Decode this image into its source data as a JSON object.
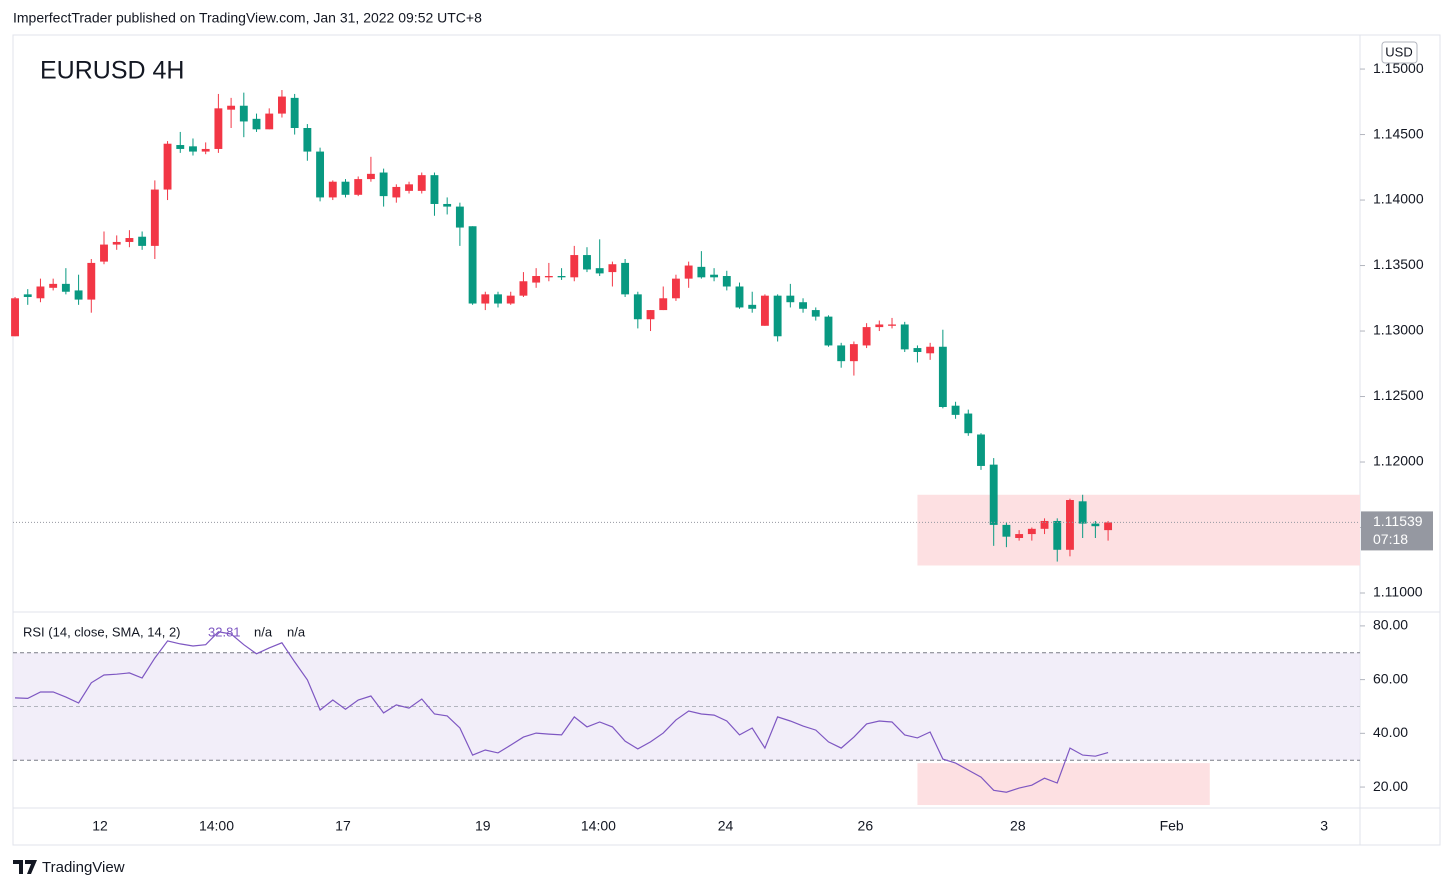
{
  "header": {
    "byline": "ImperfectTrader published on TradingView.com, Jan 31, 2022 09:52 UTC+8"
  },
  "footer": {
    "brand": "TradingView"
  },
  "chart_data": [
    {
      "type": "candlestick",
      "title": "EURUSD 4H",
      "currency": "USD",
      "up_color": "#f23645",
      "down_color": "#089981",
      "ylim": [
        1.10855,
        1.1526
      ],
      "yticks": [
        {
          "value": 1.11,
          "label": "1.11000"
        },
        {
          "value": 1.115,
          "label": "1.11500"
        },
        {
          "value": 1.12,
          "label": "1.12000"
        },
        {
          "value": 1.125,
          "label": "1.12500"
        },
        {
          "value": 1.13,
          "label": "1.13000"
        },
        {
          "value": 1.135,
          "label": "1.13500"
        },
        {
          "value": 1.14,
          "label": "1.14000"
        },
        {
          "value": 1.145,
          "label": "1.14500"
        },
        {
          "value": 1.15,
          "label": "1.15000"
        }
      ],
      "open": [
        1.1296,
        1.1328,
        1.1325,
        1.1333,
        1.1336,
        1.1331,
        1.1324,
        1.1353,
        1.1366,
        1.1368,
        1.1372,
        1.1365,
        1.1408,
        1.1442,
        1.1441,
        1.1437,
        1.1439,
        1.1469,
        1.1472,
        1.1462,
        1.1454,
        1.1466,
        1.1478,
        1.1455,
        1.1437,
        1.1402,
        1.1414,
        1.1404,
        1.1416,
        1.1421,
        1.1402,
        1.1407,
        1.1407,
        1.1419,
        1.1397,
        1.1395,
        1.138,
        1.1321,
        1.1328,
        1.1321,
        1.1327,
        1.1337,
        1.1341,
        1.1342,
        1.1341,
        1.1358,
        1.1348,
        1.1345,
        1.1352,
        1.1328,
        1.1309,
        1.1316,
        1.1325,
        1.134,
        1.1349,
        1.1343,
        1.1342,
        1.1334,
        1.132,
        1.1304,
        1.1327,
        1.1327,
        1.1322,
        1.1316,
        1.1311,
        1.1289,
        1.1277,
        1.1289,
        1.1303,
        1.1304,
        1.1305,
        1.1287,
        1.1283,
        1.1288,
        1.1243,
        1.1237,
        1.1221,
        1.1198,
        1.1152,
        1.1142,
        1.1145,
        1.1149,
        1.1155,
        1.1133,
        1.117,
        1.1153,
        1.1148
      ],
      "high": [
        1.1326,
        1.1332,
        1.134,
        1.134,
        1.1348,
        1.1343,
        1.1355,
        1.1376,
        1.1373,
        1.1377,
        1.1376,
        1.1415,
        1.1445,
        1.1452,
        1.1447,
        1.1444,
        1.1481,
        1.1478,
        1.1482,
        1.1466,
        1.147,
        1.1484,
        1.1481,
        1.1458,
        1.144,
        1.1415,
        1.1416,
        1.1418,
        1.1433,
        1.1424,
        1.1412,
        1.1414,
        1.1421,
        1.1421,
        1.1402,
        1.1398,
        1.138,
        1.133,
        1.133,
        1.133,
        1.1345,
        1.1348,
        1.1352,
        1.1348,
        1.1365,
        1.1364,
        1.137,
        1.1353,
        1.1355,
        1.133,
        1.1316,
        1.1334,
        1.1343,
        1.1353,
        1.1361,
        1.1348,
        1.1346,
        1.1337,
        1.133,
        1.1328,
        1.1328,
        1.1336,
        1.1325,
        1.1318,
        1.1312,
        1.1291,
        1.1292,
        1.1306,
        1.1308,
        1.131,
        1.1307,
        1.1289,
        1.1291,
        1.1301,
        1.1246,
        1.124,
        1.1222,
        1.1203,
        1.1154,
        1.1148,
        1.115,
        1.1157,
        1.1157,
        1.1172,
        1.1175,
        1.1155,
        1.1155
      ],
      "low": [
        1.1296,
        1.132,
        1.1322,
        1.1331,
        1.1328,
        1.132,
        1.1314,
        1.1351,
        1.1362,
        1.1364,
        1.1362,
        1.1355,
        1.14,
        1.1436,
        1.1434,
        1.1435,
        1.1436,
        1.1455,
        1.1448,
        1.1452,
        1.1454,
        1.1463,
        1.145,
        1.143,
        1.1399,
        1.14,
        1.1402,
        1.1403,
        1.1414,
        1.1395,
        1.1398,
        1.1405,
        1.1405,
        1.1388,
        1.1389,
        1.1365,
        1.132,
        1.1316,
        1.1318,
        1.132,
        1.1326,
        1.1333,
        1.1338,
        1.1339,
        1.1338,
        1.1345,
        1.1342,
        1.1334,
        1.1326,
        1.1302,
        1.13,
        1.1316,
        1.1323,
        1.1333,
        1.134,
        1.1338,
        1.1331,
        1.1317,
        1.1314,
        1.1304,
        1.1292,
        1.1318,
        1.1314,
        1.1308,
        1.1288,
        1.1272,
        1.1266,
        1.1287,
        1.13,
        1.1302,
        1.1284,
        1.1276,
        1.1278,
        1.1241,
        1.1233,
        1.122,
        1.1194,
        1.1136,
        1.1135,
        1.114,
        1.114,
        1.1145,
        1.1124,
        1.1128,
        1.1142,
        1.1142,
        1.114
      ],
      "close": [
        1.1325,
        1.1326,
        1.1334,
        1.1336,
        1.133,
        1.1324,
        1.1352,
        1.1366,
        1.1368,
        1.1371,
        1.1365,
        1.1408,
        1.1443,
        1.1439,
        1.1437,
        1.1439,
        1.147,
        1.1472,
        1.146,
        1.1454,
        1.1466,
        1.1479,
        1.1455,
        1.1437,
        1.1402,
        1.1414,
        1.1404,
        1.1416,
        1.142,
        1.1403,
        1.141,
        1.1412,
        1.1419,
        1.1397,
        1.1395,
        1.1379,
        1.1321,
        1.1328,
        1.1321,
        1.1327,
        1.1338,
        1.1342,
        1.1342,
        1.1341,
        1.1358,
        1.1347,
        1.1344,
        1.1351,
        1.1328,
        1.1309,
        1.1316,
        1.1325,
        1.134,
        1.135,
        1.1341,
        1.1341,
        1.1334,
        1.1318,
        1.1317,
        1.1327,
        1.1296,
        1.1322,
        1.1317,
        1.1311,
        1.1289,
        1.1277,
        1.129,
        1.1303,
        1.1305,
        1.1305,
        1.1286,
        1.1284,
        1.1288,
        1.1242,
        1.1236,
        1.1222,
        1.1197,
        1.1152,
        1.1143,
        1.1145,
        1.1149,
        1.1155,
        1.1133,
        1.1171,
        1.1153,
        1.1151,
        1.11539
      ],
      "last_price_label": "1.11539",
      "countdown": "07:18",
      "zone": {
        "x_start": 71.0,
        "y": [
          1.1121,
          1.1175
        ],
        "color": "#fde0e2"
      }
    },
    {
      "type": "line",
      "title": "RSI (14, close, SMA, 14, 2)",
      "color": "#7e57c2",
      "status_labels": [
        "n/a",
        "n/a"
      ],
      "ylim": [
        12.2,
        84.8
      ],
      "yticks": [
        {
          "value": 20,
          "label": "20.00"
        },
        {
          "value": 40,
          "label": "40.00"
        },
        {
          "value": 60,
          "label": "60.00"
        },
        {
          "value": 80,
          "label": "80.00"
        }
      ],
      "bands": [
        30,
        70
      ],
      "midline": 50,
      "xlim": [
        -0.16,
        105.82
      ],
      "xticks": [
        {
          "value": 6.69,
          "label": "12"
        },
        {
          "value": 15.85,
          "label": "14:00"
        },
        {
          "value": 25.8,
          "label": "17"
        },
        {
          "value": 36.8,
          "label": "19"
        },
        {
          "value": 45.9,
          "label": "14:00"
        },
        {
          "value": 55.9,
          "label": "24"
        },
        {
          "value": 66.9,
          "label": "26"
        },
        {
          "value": 78.9,
          "label": "28"
        },
        {
          "value": 91.0,
          "label": "Feb"
        },
        {
          "value": 103.0,
          "label": "3"
        }
      ],
      "values": [
        53.2,
        53,
        55.4,
        55.4,
        53.5,
        51.3,
        58.8,
        61.7,
        62,
        62.5,
        60.6,
        68,
        74.4,
        73.3,
        72.5,
        73,
        77.8,
        77,
        73,
        69.6,
        71.8,
        73.7,
        66.6,
        59.9,
        48.7,
        52.4,
        49,
        52.4,
        53.9,
        47.6,
        50.6,
        49.4,
        52.8,
        47.2,
        46.5,
        42,
        31.9,
        33.8,
        32.7,
        35.6,
        38.6,
        40.1,
        39.7,
        39.4,
        46.1,
        42.4,
        44.2,
        42.4,
        37.1,
        34.2,
        36.8,
        40.1,
        45,
        48.3,
        47.2,
        46.8,
        44.6,
        39.4,
        42,
        34.5,
        46.1,
        44.6,
        42.7,
        41.2,
        36.8,
        34.5,
        38.6,
        43.5,
        44.6,
        44.2,
        39.4,
        38.3,
        40.5,
        30.4,
        28.9,
        26.3,
        23.7,
        18.8,
        18.1,
        19.6,
        20.7,
        23.3,
        21.5,
        34.5,
        31.9,
        31.5,
        32.81
      ],
      "zone": {
        "x": [
          71.0,
          94.0
        ],
        "y": [
          13.3,
          28.9
        ],
        "color": "#fde0e2"
      }
    }
  ]
}
